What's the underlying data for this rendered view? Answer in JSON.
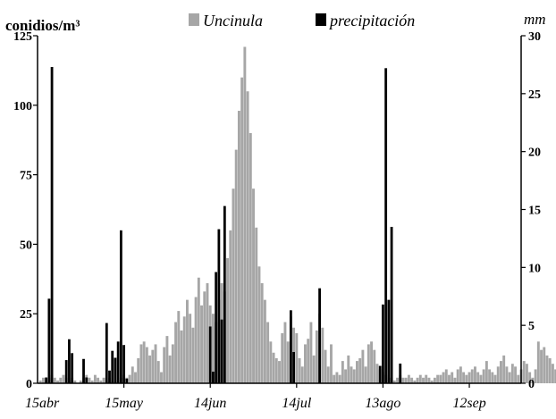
{
  "chart_data": {
    "type": "bar",
    "left_axis_label": "conidios/m³",
    "right_axis_label": "mm",
    "legend_location": "top",
    "grid": false,
    "x_ticks": [
      "15abr",
      "15may",
      "14jun",
      "14jul",
      "13ago",
      "12sep"
    ],
    "ylim_left": [
      0,
      125
    ],
    "ylim_right": [
      0,
      30
    ],
    "y_ticks_left": [
      0,
      25,
      50,
      75,
      100,
      125
    ],
    "y_ticks_right": [
      0,
      5,
      10,
      15,
      20,
      25,
      30
    ],
    "series": [
      {
        "name": "Uncinula",
        "axis": "left",
        "color": "#a6a6a6",
        "x_start_day": 0,
        "values": [
          0,
          1,
          2,
          1,
          2,
          3,
          2,
          1,
          2,
          3,
          2,
          1,
          2,
          1,
          0,
          1,
          2,
          3,
          2,
          1,
          3,
          2,
          1,
          2,
          1,
          2,
          1,
          0,
          1,
          2,
          3,
          2,
          3,
          6,
          4,
          9,
          14,
          15,
          13,
          10,
          12,
          14,
          8,
          4,
          13,
          17,
          10,
          14,
          22,
          26,
          19,
          24,
          30,
          25,
          20,
          31,
          38,
          28,
          33,
          36,
          28,
          25,
          22,
          30,
          36,
          33,
          45,
          55,
          70,
          84,
          98,
          110,
          121,
          105,
          90,
          70,
          56,
          42,
          36,
          30,
          22,
          15,
          11,
          9,
          8,
          18,
          22,
          15,
          24,
          20,
          18,
          9,
          6,
          14,
          16,
          22,
          10,
          19,
          25,
          20,
          12,
          6,
          14,
          3,
          4,
          3,
          8,
          5,
          10,
          6,
          5,
          8,
          9,
          12,
          6,
          14,
          15,
          12,
          7,
          5,
          4,
          3,
          2,
          2,
          1,
          2,
          3,
          2,
          2,
          3,
          2,
          1,
          2,
          3,
          2,
          3,
          2,
          1,
          2,
          3,
          3,
          4,
          5,
          3,
          4,
          2,
          5,
          6,
          4,
          3,
          4,
          5,
          6,
          4,
          3,
          5,
          8,
          5,
          4,
          3,
          6,
          8,
          10,
          6,
          4,
          7,
          6,
          3,
          5,
          8,
          7,
          4,
          2,
          5,
          15,
          12,
          13,
          10,
          9,
          7,
          5,
          3,
          4,
          5,
          9,
          7,
          4
        ]
      },
      {
        "name": "precipitación",
        "axis": "right",
        "color": "#000000",
        "days": [
          3,
          4,
          5,
          10,
          11,
          12,
          16,
          17,
          24,
          25,
          26,
          27,
          28,
          29,
          30,
          31,
          60,
          61,
          62,
          63,
          64,
          65,
          88,
          89,
          98,
          119,
          120,
          121,
          122,
          123,
          126
        ],
        "values": [
          0.5,
          7.3,
          27.3,
          2.0,
          3.8,
          2.6,
          2.1,
          0.5,
          5.2,
          1.1,
          2.8,
          2.2,
          3.6,
          13.2,
          3.3,
          0.4,
          4.9,
          1.0,
          9.6,
          13.3,
          5.5,
          15.3,
          6.3,
          2.7,
          8.2,
          1.5,
          6.8,
          27.2,
          7.2,
          13.5,
          1.7
        ]
      }
    ]
  }
}
